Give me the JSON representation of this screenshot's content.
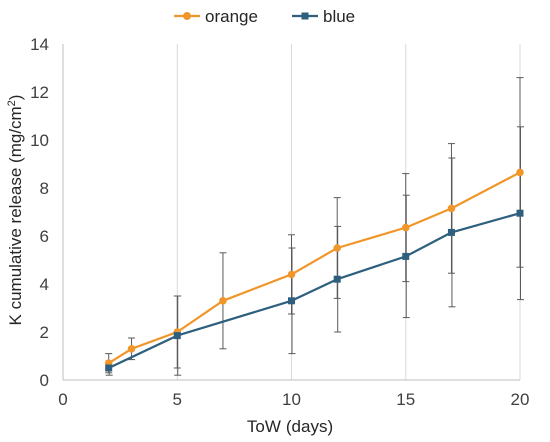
{
  "chart_data": {
    "type": "line",
    "xlabel_main": "ToW",
    "xlabel_unit": "(days)",
    "ylabel_main": "K cumulative release (mg/cm",
    "ylabel_sup": "2",
    "ylabel_close": ")",
    "xlim": [
      0,
      20
    ],
    "ylim": [
      0,
      14
    ],
    "x_ticks": [
      0,
      5,
      10,
      15,
      20
    ],
    "y_ticks": [
      0,
      2,
      4,
      6,
      8,
      10,
      12,
      14
    ],
    "grid": "vertical",
    "legend": "top",
    "series": [
      {
        "name": "orange",
        "color": "#F0962A",
        "marker": "circle",
        "x": [
          2,
          3,
          5,
          7,
          10,
          12,
          15,
          17,
          20
        ],
        "y": [
          0.7,
          1.3,
          2.0,
          3.3,
          4.4,
          5.5,
          6.35,
          7.15,
          8.65
        ],
        "err": [
          0.4,
          0.45,
          1.5,
          2.0,
          1.65,
          2.1,
          2.25,
          2.7,
          3.95
        ]
      },
      {
        "name": "blue",
        "color": "#2E5F7F",
        "marker": "square",
        "x": [
          2,
          5,
          10,
          12,
          15,
          17,
          20
        ],
        "y": [
          0.5,
          1.85,
          3.3,
          4.2,
          5.15,
          6.15,
          6.95
        ],
        "err": [
          0.3,
          1.65,
          2.2,
          2.2,
          2.55,
          3.1,
          3.6
        ]
      }
    ]
  }
}
